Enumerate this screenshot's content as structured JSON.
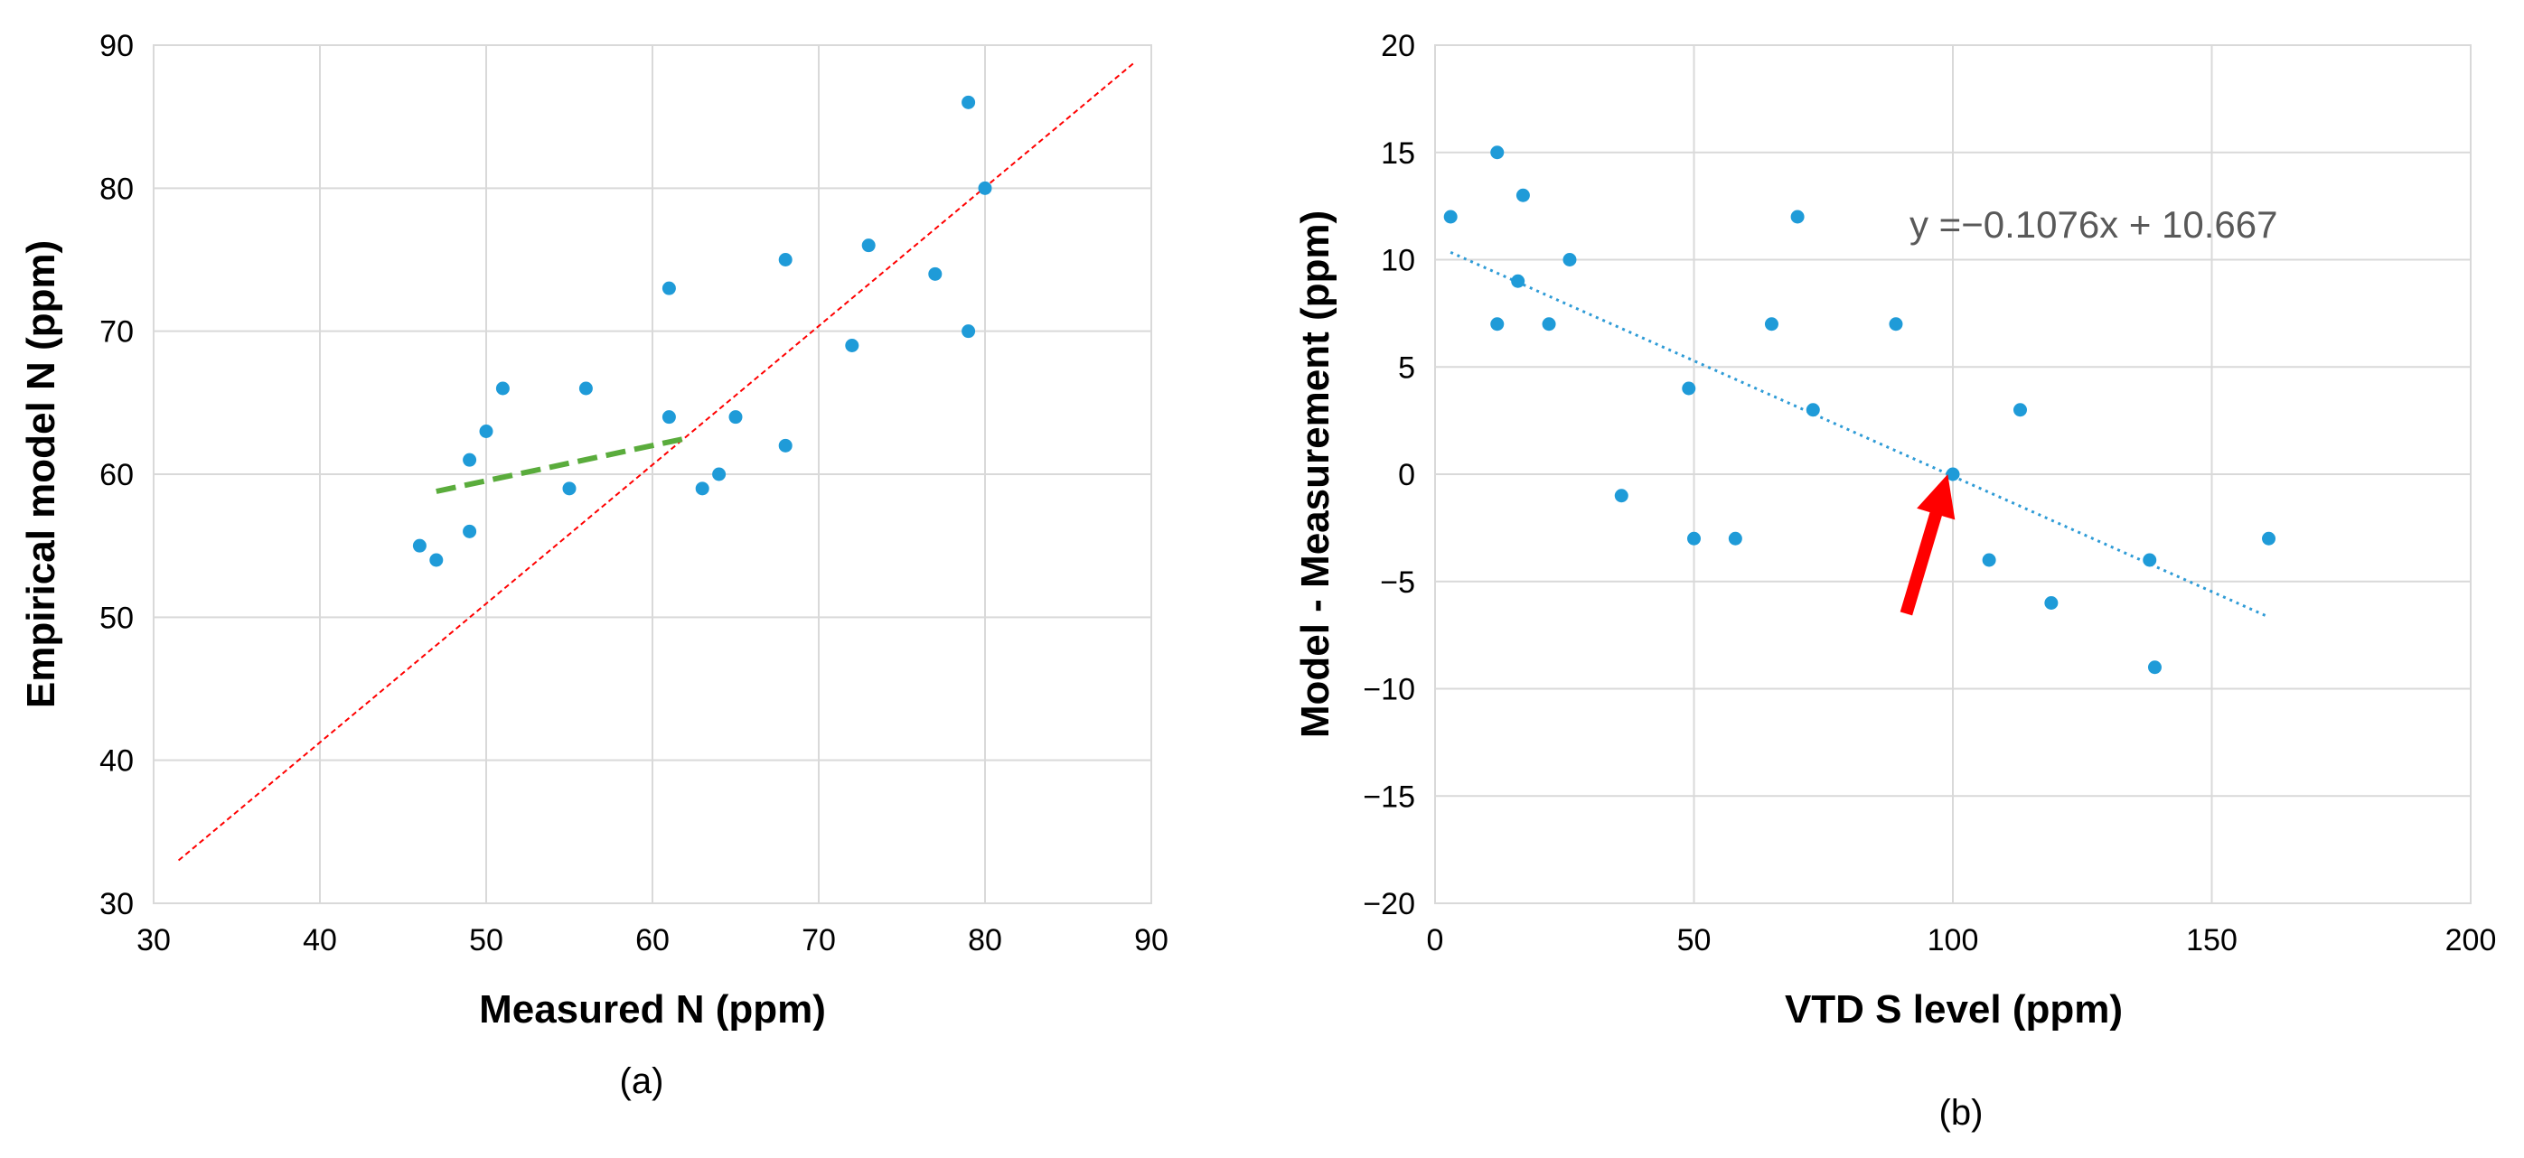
{
  "chart_data": [
    {
      "type": "scatter",
      "panel": "(a)",
      "xlabel": "Measured N (ppm)",
      "ylabel": "Empirical model N (ppm)",
      "xlim": [
        30,
        90
      ],
      "ylim": [
        30,
        90
      ],
      "x_ticks": [
        "30",
        "40",
        "50",
        "60",
        "70",
        "80",
        "90"
      ],
      "y_ticks": [
        "30",
        "40",
        "50",
        "60",
        "70",
        "80",
        "90"
      ],
      "grid": true,
      "series": [
        {
          "name": "data",
          "color": "#1f9bd8",
          "points": [
            [
              46,
              55
            ],
            [
              47,
              54
            ],
            [
              49,
              61
            ],
            [
              49,
              56
            ],
            [
              50,
              63
            ],
            [
              51,
              66
            ],
            [
              55,
              59
            ],
            [
              56,
              66
            ],
            [
              61,
              73
            ],
            [
              61,
              64
            ],
            [
              63,
              59
            ],
            [
              64,
              60
            ],
            [
              65,
              64
            ],
            [
              68,
              75
            ],
            [
              68,
              62
            ],
            [
              72,
              69
            ],
            [
              73,
              76
            ],
            [
              77,
              74
            ],
            [
              79,
              86
            ],
            [
              79,
              70
            ],
            [
              80,
              80
            ]
          ]
        }
      ],
      "lines": [
        {
          "name": "1:1 line",
          "style": "dashed",
          "color": "#ff0000",
          "from": [
            31.5,
            33
          ],
          "to": [
            89,
            88.8
          ]
        },
        {
          "name": "trend",
          "style": "dashed",
          "color": "#5aac3c",
          "from": [
            47,
            58.8
          ],
          "to": [
            62,
            62.5
          ]
        }
      ]
    },
    {
      "type": "scatter",
      "panel": "(b)",
      "xlabel": "VTD S level (ppm)",
      "ylabel": "Model - Measurement (ppm)",
      "xlim": [
        0,
        200
      ],
      "ylim": [
        -20,
        20
      ],
      "x_ticks": [
        "0",
        "50",
        "100",
        "150",
        "200"
      ],
      "y_ticks": [
        "20",
        "15",
        "10",
        "5",
        "0",
        "−5",
        "−10",
        "−15",
        "−20"
      ],
      "grid": true,
      "equation": "y =−0.1076x + 10.667",
      "series": [
        {
          "name": "data",
          "color": "#1f9bd8",
          "points": [
            [
              3,
              12
            ],
            [
              12,
              15
            ],
            [
              12,
              7
            ],
            [
              16,
              9
            ],
            [
              17,
              13
            ],
            [
              22,
              7
            ],
            [
              26,
              10
            ],
            [
              36,
              -1
            ],
            [
              49,
              4
            ],
            [
              50,
              -3
            ],
            [
              58,
              -3
            ],
            [
              65,
              7
            ],
            [
              70,
              12
            ],
            [
              73,
              3
            ],
            [
              89,
              7
            ],
            [
              100,
              0
            ],
            [
              107,
              -4
            ],
            [
              113,
              3
            ],
            [
              119,
              -6
            ],
            [
              138,
              -4
            ],
            [
              139,
              -9
            ],
            [
              161,
              -3
            ]
          ]
        }
      ],
      "trendline": {
        "slope": -0.1076,
        "intercept": 10.667,
        "x_range": [
          3,
          161
        ],
        "style": "dotted",
        "color": "#2e9bd6"
      },
      "arrow": {
        "color": "#ff0000",
        "from": [
          91,
          -6.5
        ],
        "to": [
          99,
          0
        ]
      }
    }
  ]
}
